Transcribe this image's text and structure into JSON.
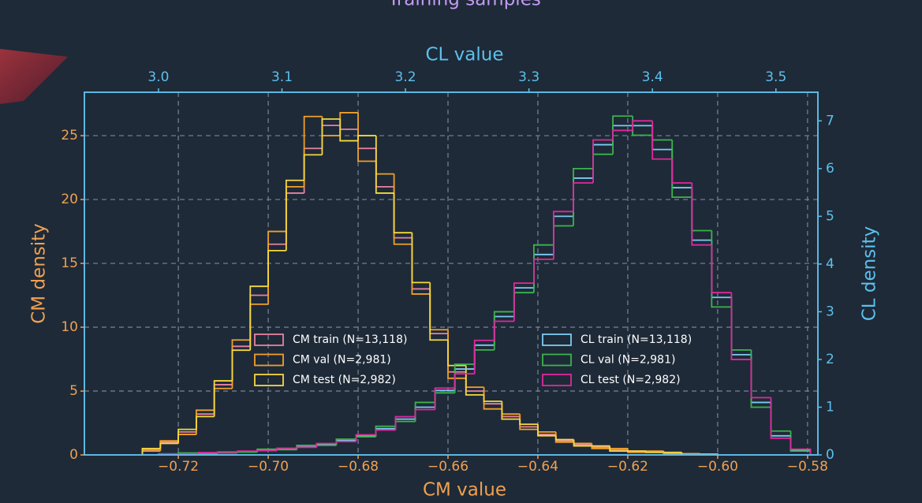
{
  "chart_data": {
    "type": "histogram",
    "title": "Training samples",
    "xlabel": "CM value",
    "ylabel": "CM density",
    "x2label": "CL value",
    "y2label": "CL density",
    "xlim": [
      -0.7409,
      -0.5777
    ],
    "xticks": [
      {
        "value": -0.72,
        "label": "−0.72"
      },
      {
        "value": -0.7,
        "label": "−0.70"
      },
      {
        "value": -0.68,
        "label": "−0.68"
      },
      {
        "value": -0.66,
        "label": "−0.66"
      },
      {
        "value": -0.64,
        "label": "−0.64"
      },
      {
        "value": -0.62,
        "label": "−0.62"
      },
      {
        "value": -0.6,
        "label": "−0.60"
      },
      {
        "value": -0.58,
        "label": "−0.58"
      }
    ],
    "x2lim": [
      2.94,
      3.534
    ],
    "x2ticks": [
      {
        "value": 3,
        "label": "3.0"
      },
      3.1,
      3.2,
      3.3,
      3.4,
      3.5
    ],
    "ylim": [
      0,
      28.4
    ],
    "yticks": [
      0,
      5,
      10,
      15,
      20,
      25
    ],
    "y2lim": [
      0,
      7.6
    ],
    "y2ticks": [
      0,
      1,
      2,
      3,
      4,
      5,
      6,
      7
    ],
    "grid": true,
    "series": [
      {
        "name": "CM train (N=13,118)",
        "color": "#e8829e",
        "axis": "y",
        "bins": [
          -0.728,
          -0.724,
          -0.72,
          -0.716,
          -0.712,
          -0.708,
          -0.704,
          -0.7,
          -0.696,
          -0.692,
          -0.688,
          -0.684,
          -0.68,
          -0.676,
          -0.672,
          -0.668,
          -0.664,
          -0.66,
          -0.656,
          -0.652,
          -0.648,
          -0.644,
          -0.64,
          -0.636,
          -0.632,
          -0.628,
          -0.624,
          -0.62,
          -0.616,
          -0.612,
          -0.608,
          -0.604,
          -0.6
        ],
        "values": [
          0.4,
          1.0,
          1.8,
          3.2,
          5.5,
          8.5,
          12.5,
          16.5,
          20.5,
          24,
          25.8,
          25.5,
          24,
          21,
          17,
          13,
          9.5,
          6.5,
          5,
          4,
          3,
          2.2,
          1.6,
          1.1,
          0.8,
          0.6,
          0.4,
          0.3,
          0.2,
          0.1,
          0.1,
          0.05
        ]
      },
      {
        "name": "CM val (N=2,981)",
        "color": "#f0a028",
        "axis": "y",
        "bins": [
          -0.728,
          -0.724,
          -0.72,
          -0.716,
          -0.712,
          -0.708,
          -0.704,
          -0.7,
          -0.696,
          -0.692,
          -0.688,
          -0.684,
          -0.68,
          -0.676,
          -0.672,
          -0.668,
          -0.664,
          -0.66,
          -0.656,
          -0.652,
          -0.648,
          -0.644,
          -0.64,
          -0.636,
          -0.632,
          -0.628,
          -0.624,
          -0.62,
          -0.616,
          -0.612,
          -0.608,
          -0.604,
          -0.6
        ],
        "values": [
          0.3,
          1.1,
          1.6,
          3.5,
          5.2,
          9,
          11.8,
          17.5,
          21,
          26.5,
          25,
          26.8,
          23,
          22,
          16.5,
          12.6,
          9.8,
          6,
          5.3,
          3.6,
          3.2,
          2.0,
          1.8,
          1.0,
          0.9,
          0.5,
          0.5,
          0.2,
          0.3,
          0.1,
          0.1,
          0
        ]
      },
      {
        "name": "CM test (N=2,982)",
        "color": "#f5d83c",
        "axis": "y",
        "bins": [
          -0.728,
          -0.724,
          -0.72,
          -0.716,
          -0.712,
          -0.708,
          -0.704,
          -0.7,
          -0.696,
          -0.692,
          -0.688,
          -0.684,
          -0.68,
          -0.676,
          -0.672,
          -0.668,
          -0.664,
          -0.66,
          -0.656,
          -0.652,
          -0.648,
          -0.644,
          -0.64,
          -0.636,
          -0.632,
          -0.628,
          -0.624,
          -0.62,
          -0.616,
          -0.612,
          -0.608,
          -0.604,
          -0.6
        ],
        "values": [
          0.5,
          0.9,
          2.0,
          3.0,
          5.8,
          8.2,
          13.2,
          16,
          21.5,
          23.5,
          26.3,
          24.6,
          25,
          20.5,
          17.4,
          13.5,
          9,
          7,
          4.7,
          4.2,
          2.8,
          2.4,
          1.5,
          1.2,
          0.7,
          0.7,
          0.3,
          0.3,
          0.2,
          0.2,
          0,
          0.05
        ]
      },
      {
        "name": "CL train (N=13,118)",
        "color": "#7ccaf2",
        "axis": "y2",
        "bins": [
          3.0,
          3.016,
          3.032,
          3.048,
          3.064,
          3.08,
          3.096,
          3.112,
          3.128,
          3.144,
          3.16,
          3.176,
          3.192,
          3.208,
          3.224,
          3.24,
          3.256,
          3.272,
          3.288,
          3.304,
          3.32,
          3.336,
          3.352,
          3.368,
          3.384,
          3.4,
          3.416,
          3.432,
          3.448,
          3.464,
          3.48,
          3.496,
          3.512,
          3.528
        ],
        "values": [
          0.02,
          0.03,
          0.04,
          0.05,
          0.07,
          0.1,
          0.13,
          0.17,
          0.22,
          0.3,
          0.4,
          0.55,
          0.75,
          1.0,
          1.35,
          1.8,
          2.3,
          2.9,
          3.5,
          4.2,
          5.0,
          5.8,
          6.5,
          6.9,
          6.9,
          6.4,
          5.6,
          4.5,
          3.3,
          2.1,
          1.1,
          0.4,
          0.1
        ]
      },
      {
        "name": "CL val (N=2,981)",
        "color": "#3cb44b",
        "axis": "y2",
        "bins": [
          3.0,
          3.016,
          3.032,
          3.048,
          3.064,
          3.08,
          3.096,
          3.112,
          3.128,
          3.144,
          3.16,
          3.176,
          3.192,
          3.208,
          3.224,
          3.24,
          3.256,
          3.272,
          3.288,
          3.304,
          3.32,
          3.336,
          3.352,
          3.368,
          3.384,
          3.4,
          3.416,
          3.432,
          3.448,
          3.464,
          3.48,
          3.496,
          3.512,
          3.528
        ],
        "values": [
          0.01,
          0.04,
          0.03,
          0.06,
          0.06,
          0.12,
          0.11,
          0.2,
          0.2,
          0.33,
          0.38,
          0.6,
          0.7,
          1.1,
          1.3,
          1.9,
          2.2,
          3.0,
          3.4,
          4.4,
          4.8,
          6.0,
          6.3,
          7.1,
          6.7,
          6.6,
          5.4,
          4.7,
          3.1,
          2.2,
          1.0,
          0.5,
          0.08
        ]
      },
      {
        "name": "CL test (N=2,982)",
        "color": "#e0289c",
        "axis": "y2",
        "bins": [
          3.0,
          3.016,
          3.032,
          3.048,
          3.064,
          3.08,
          3.096,
          3.112,
          3.128,
          3.144,
          3.16,
          3.176,
          3.192,
          3.208,
          3.224,
          3.24,
          3.256,
          3.272,
          3.288,
          3.304,
          3.32,
          3.336,
          3.352,
          3.368,
          3.384,
          3.4,
          3.416,
          3.432,
          3.448,
          3.464,
          3.48,
          3.496,
          3.512,
          3.528
        ],
        "values": [
          0.02,
          0.02,
          0.05,
          0.04,
          0.08,
          0.09,
          0.14,
          0.16,
          0.24,
          0.28,
          0.42,
          0.52,
          0.8,
          0.95,
          1.4,
          1.7,
          2.4,
          2.8,
          3.6,
          4.1,
          5.1,
          5.7,
          6.6,
          6.8,
          7.0,
          6.2,
          5.7,
          4.4,
          3.4,
          2.0,
          1.2,
          0.35,
          0.12
        ]
      }
    ]
  }
}
